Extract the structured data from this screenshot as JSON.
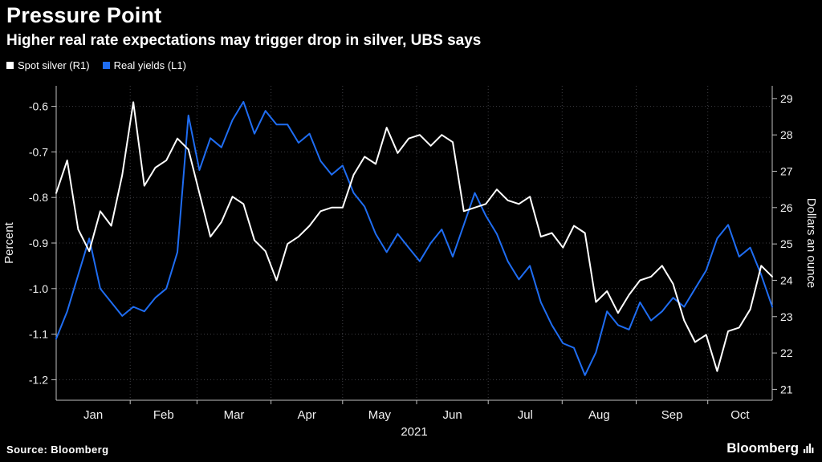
{
  "header": {
    "title": "Pressure Point",
    "subtitle": "Higher real rate expectations may trigger drop in silver, UBS says"
  },
  "footer": {
    "source": "Source: Bloomberg",
    "brand": "Bloomberg"
  },
  "chart_data": {
    "type": "line",
    "title": "Pressure Point",
    "subtitle": "Higher real rate expectations may trigger drop in silver, UBS says",
    "legend_position": "top-left",
    "grid": "dotted",
    "style": {
      "background": "#000000",
      "grid_color": "#3f3f44",
      "axis_color": "#c0c0c0",
      "text_color": "#f2f2f2"
    },
    "x_axis": {
      "label": "2021",
      "tick_labels": [
        "Jan",
        "Feb",
        "Mar",
        "Apr",
        "May",
        "Jun",
        "Jul",
        "Aug",
        "Sep",
        "Oct"
      ],
      "span_days": 300,
      "month_start_days": [
        0,
        31,
        59,
        90,
        120,
        151,
        181,
        212,
        243,
        273
      ]
    },
    "left_axis": {
      "label": "Percent",
      "ticks": [
        -0.6,
        -0.7,
        -0.8,
        -0.9,
        -1.0,
        -1.1,
        -1.2
      ],
      "tick_labels": [
        "-0.6",
        "-0.7",
        "-0.8",
        "-0.9",
        "-1.0",
        "-1.1",
        "-1.2"
      ],
      "domain": [
        -1.245,
        -0.555
      ]
    },
    "right_axis": {
      "label": "Dollars an ounce",
      "ticks": [
        21,
        22,
        23,
        24,
        25,
        26,
        27,
        28,
        29
      ],
      "tick_labels": [
        "21",
        "22",
        "23",
        "24",
        "25",
        "26",
        "27",
        "28",
        "29"
      ],
      "domain": [
        20.7,
        29.35
      ]
    },
    "series": [
      {
        "name": "Spot silver (R1)",
        "axis": "right",
        "color": "#ffffff",
        "values": [
          26.4,
          27.3,
          25.4,
          24.8,
          25.9,
          25.5,
          26.9,
          28.9,
          26.6,
          27.1,
          27.3,
          27.9,
          27.6,
          26.4,
          25.2,
          25.6,
          26.3,
          26.1,
          25.1,
          24.8,
          24.0,
          25.0,
          25.2,
          25.5,
          25.9,
          26.0,
          26.0,
          26.9,
          27.4,
          27.2,
          28.2,
          27.5,
          27.9,
          28.0,
          27.7,
          28.0,
          27.8,
          25.9,
          26.0,
          26.1,
          26.5,
          26.2,
          26.1,
          26.3,
          25.2,
          25.3,
          24.9,
          25.5,
          25.3,
          23.4,
          23.7,
          23.1,
          23.6,
          24.0,
          24.1,
          24.4,
          23.9,
          22.9,
          22.3,
          22.5,
          21.5,
          22.6,
          22.7,
          23.2,
          24.4,
          24.1
        ]
      },
      {
        "name": "Real yields (L1)",
        "axis": "left",
        "color": "#1f6df2",
        "values": [
          -1.11,
          -1.05,
          -0.97,
          -0.89,
          -1.0,
          -1.03,
          -1.06,
          -1.04,
          -1.05,
          -1.02,
          -1.0,
          -0.92,
          -0.62,
          -0.74,
          -0.67,
          -0.69,
          -0.63,
          -0.59,
          -0.66,
          -0.61,
          -0.64,
          -0.64,
          -0.68,
          -0.66,
          -0.72,
          -0.75,
          -0.73,
          -0.79,
          -0.82,
          -0.88,
          -0.92,
          -0.88,
          -0.91,
          -0.94,
          -0.9,
          -0.87,
          -0.93,
          -0.86,
          -0.79,
          -0.84,
          -0.88,
          -0.94,
          -0.98,
          -0.95,
          -1.03,
          -1.08,
          -1.12,
          -1.13,
          -1.19,
          -1.14,
          -1.05,
          -1.08,
          -1.09,
          -1.03,
          -1.07,
          -1.05,
          -1.02,
          -1.04,
          -1.0,
          -0.96,
          -0.89,
          -0.86,
          -0.93,
          -0.91,
          -0.97,
          -1.04
        ]
      }
    ]
  }
}
